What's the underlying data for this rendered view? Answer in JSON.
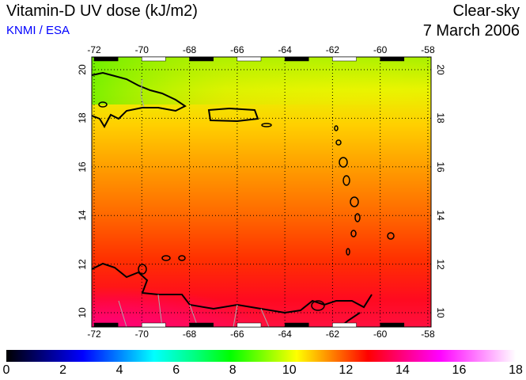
{
  "header": {
    "title": "Vitamin-D UV dose (kJ/m2)",
    "org": "KNMI / ESA",
    "condition": "Clear-sky",
    "date": "7 March 2006"
  },
  "map": {
    "lon_ticks": [
      "-72",
      "-70",
      "-68",
      "-66",
      "-64",
      "-62",
      "-60",
      "-58"
    ],
    "lat_ticks": [
      "10",
      "12",
      "14",
      "16",
      "18",
      "20"
    ],
    "lon_range": [
      -72,
      -58
    ],
    "lat_range": [
      9.5,
      20.5
    ]
  },
  "colorbar": {
    "ticks": [
      "0",
      "2",
      "4",
      "6",
      "8",
      "10",
      "12",
      "14",
      "16",
      "18"
    ],
    "range": [
      0,
      18
    ],
    "colors": [
      "#000000",
      "#0000ff",
      "#00ffff",
      "#00ff00",
      "#ffff00",
      "#ff0000",
      "#ff00ff",
      "#ffffff"
    ]
  }
}
